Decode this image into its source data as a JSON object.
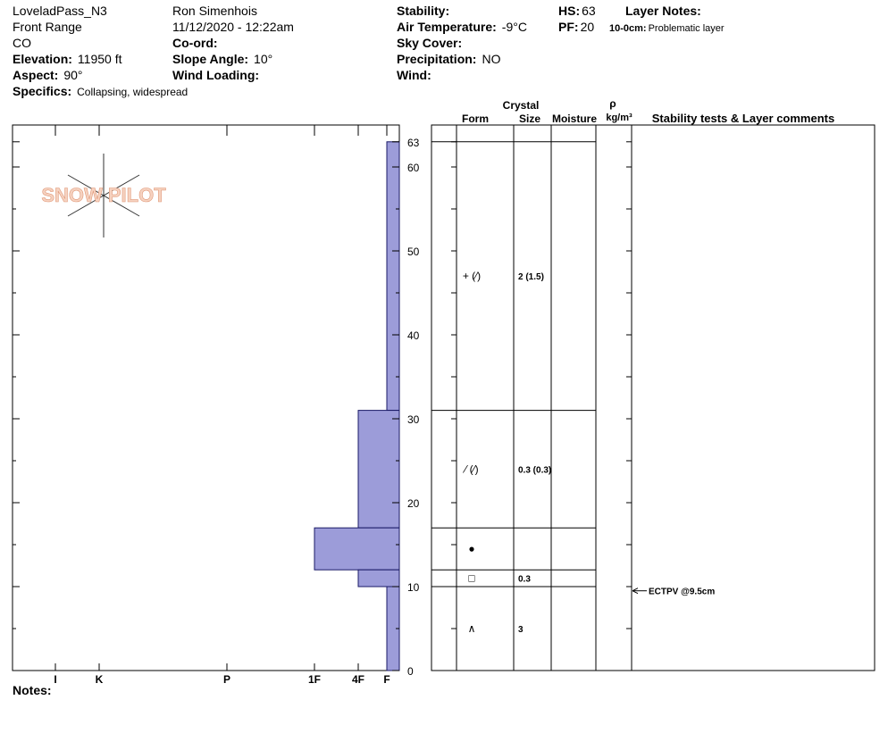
{
  "header": {
    "columns": [
      [
        {
          "value": "LoveladPass_N3"
        },
        {
          "value": "Front Range"
        },
        {
          "value": "CO"
        },
        {
          "label": "Elevation:",
          "value": "11950 ft"
        },
        {
          "label": "Aspect:",
          "value": "90°"
        },
        {
          "label": "Specifics:",
          "value": "Collapsing, widespread"
        }
      ],
      [
        {
          "value": "Ron Simenhois"
        },
        {
          "value": "11/12/2020 - 12:22am"
        },
        {
          "label": "Co-ord:"
        },
        {
          "label": "Slope Angle:",
          "value": "10°"
        },
        {
          "label": "Wind Loading:"
        }
      ],
      [
        {
          "label": "Stability:"
        },
        {
          "label": "Air Temperature:",
          "value": "-9°C"
        },
        {
          "label": "Sky Cover:"
        },
        {
          "label": "Precipitation:",
          "value": "NO"
        },
        {
          "label": "Wind:"
        }
      ],
      [
        {
          "label": "HS:",
          "value": "63"
        },
        {
          "label": "PF:",
          "value": "20"
        }
      ]
    ],
    "layer_notes": {
      "title": "Layer Notes:",
      "label": "10-0cm:",
      "text": "Problematic layer"
    }
  },
  "logo": "SNOW PILOT",
  "columns": {
    "crystal": "Crystal",
    "form": "Form",
    "size": "Size",
    "moisture": "Moisture",
    "rho": "ρ",
    "density_unit": "kg/m³",
    "comments": "Stability tests & Layer comments"
  },
  "profile": {
    "ylim": [
      0,
      65
    ],
    "yticks": [
      0,
      10,
      20,
      30,
      40,
      50,
      60,
      63
    ],
    "minor_yticks": [
      5,
      15,
      25,
      35,
      45,
      55
    ],
    "hardness": [
      "I",
      "K",
      "P",
      "1F",
      "4F",
      "F"
    ],
    "layers": [
      {
        "top": 63,
        "bottom": 31,
        "hardness": "F",
        "form": "+ (⁄)",
        "size": "2 (1.5)"
      },
      {
        "top": 31,
        "bottom": 17,
        "hardness": "4F",
        "form": "⁄ (⁄)",
        "size": "0.3 (0.3)"
      },
      {
        "top": 17,
        "bottom": 12,
        "hardness": "1F",
        "form": "●"
      },
      {
        "top": 12,
        "bottom": 10,
        "hardness": "4F",
        "form": "□",
        "size": "0.3"
      },
      {
        "top": 10,
        "bottom": 0,
        "hardness": "F",
        "form": "∧",
        "size": "3"
      }
    ],
    "tests": [
      {
        "depth": 9.5,
        "label": "ECTPV @9.5cm"
      }
    ]
  },
  "notes": "Notes:"
}
